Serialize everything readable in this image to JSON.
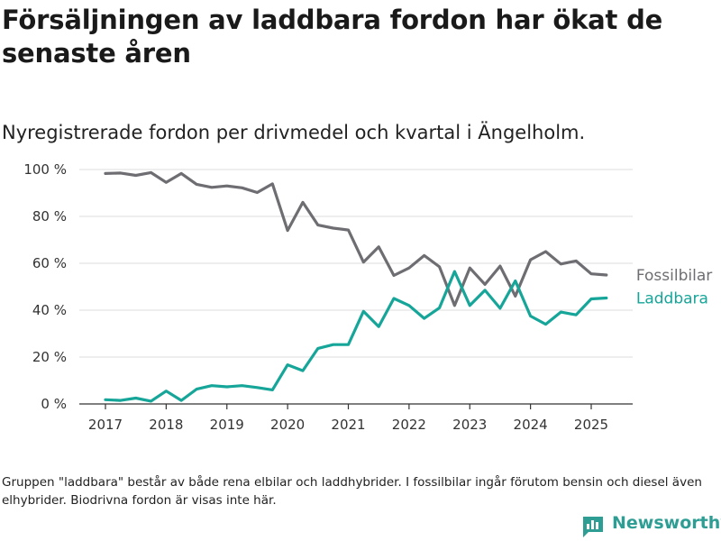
{
  "title": "Försäljningen av laddbara fordon har ökat de senaste åren",
  "subtitle": "Nyregistrerade fordon per drivmedel och kvartal i Ängelholm.",
  "footnote": "Gruppen \"laddbara\" består av både rena elbilar och laddhybrider. I fossilbilar ingår förutom bensin och diesel även elhybrider. Biodrivna fordon är visas inte här.",
  "logo": {
    "text": "Newsworthy",
    "icon": "bar-chart-logo-icon"
  },
  "colors": {
    "fossil": "#6e6d72",
    "laddbara": "#16a599",
    "grid": "#dddddd",
    "brand": "#2e9e95"
  },
  "chart_data": {
    "type": "line",
    "x_unit": "quarter",
    "x_ticks": [
      "2017",
      "2018",
      "2019",
      "2020",
      "2021",
      "2022",
      "2023",
      "2024",
      "2025"
    ],
    "y_ticks": [
      "0 %",
      "20 %",
      "40 %",
      "60 %",
      "80 %",
      "100 %"
    ],
    "ylim": [
      0,
      100
    ],
    "grid": "horizontal",
    "x": [
      "2017 Q1",
      "2017 Q2",
      "2017 Q3",
      "2017 Q4",
      "2018 Q1",
      "2018 Q2",
      "2018 Q3",
      "2018 Q4",
      "2019 Q1",
      "2019 Q2",
      "2019 Q3",
      "2019 Q4",
      "2020 Q1",
      "2020 Q2",
      "2020 Q3",
      "2020 Q4",
      "2021 Q1",
      "2021 Q2",
      "2021 Q3",
      "2021 Q4",
      "2022 Q1",
      "2022 Q2",
      "2022 Q3",
      "2022 Q4",
      "2023 Q1",
      "2023 Q2",
      "2023 Q3",
      "2023 Q4",
      "2024 Q1",
      "2024 Q2",
      "2024 Q3",
      "2024 Q4",
      "2025 Q1",
      "2025 Q2"
    ],
    "series": [
      {
        "name": "Fossilbilar",
        "color": "#6e6d72",
        "values": [
          98.3,
          98.5,
          97.5,
          98.7,
          94.5,
          98.3,
          93.7,
          92.4,
          93.0,
          92.2,
          90.2,
          93.9,
          74.0,
          86.0,
          76.3,
          75.0,
          74.2,
          60.5,
          67.0,
          54.8,
          58.0,
          63.3,
          58.5,
          42.0,
          58.0,
          51.0,
          58.8,
          46.0,
          61.5,
          65.0,
          59.7,
          61.0,
          55.5,
          55.0
        ]
      },
      {
        "name": "Laddbara",
        "color": "#16a599",
        "values": [
          1.8,
          1.5,
          2.5,
          1.2,
          5.5,
          1.5,
          6.3,
          7.8,
          7.3,
          7.8,
          7.0,
          6.0,
          16.7,
          14.2,
          23.7,
          25.3,
          25.3,
          39.5,
          33.0,
          45.0,
          42.0,
          36.5,
          41.0,
          56.5,
          42.0,
          48.5,
          40.8,
          52.5,
          37.5,
          34.0,
          39.2,
          38.0,
          44.8,
          45.2
        ]
      }
    ]
  }
}
